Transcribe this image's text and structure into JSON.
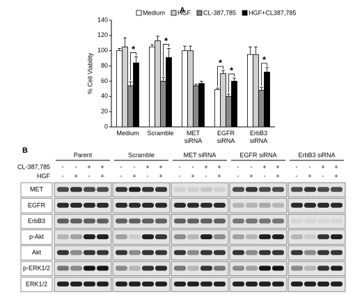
{
  "panel_a_label": "A",
  "chart_data": {
    "type": "bar",
    "ylabel": "% Cell Viability",
    "categories": [
      "Medium",
      "Scramble",
      "MET siRNA",
      "EGFR siRNA",
      "ErbB3 siRNA"
    ],
    "series": [
      {
        "name": "Medium",
        "color": "#ffffff",
        "values": [
          100,
          105,
          100,
          49,
          95
        ],
        "errors": [
          3,
          3,
          6,
          2,
          10
        ]
      },
      {
        "name": "HGF",
        "color": "#d0d0d0",
        "values": [
          105,
          113,
          100,
          70,
          95
        ],
        "errors": [
          12,
          6,
          6,
          4,
          10
        ]
      },
      {
        "name": "CL-387,785",
        "color": "#8a8a8a",
        "values": [
          54,
          60,
          54,
          40,
          48
        ],
        "errors": [
          5,
          5,
          2,
          3,
          4
        ]
      },
      {
        "name": "HGF+CL387,785",
        "color": "#000000",
        "values": [
          84,
          91,
          57,
          60,
          72
        ],
        "errors": [
          8,
          12,
          3,
          4,
          6
        ]
      }
    ],
    "ylim": [
      0,
      140
    ],
    "yticks": [
      0,
      20,
      40,
      60,
      80,
      100,
      120,
      140
    ],
    "annotations": [
      "*",
      "*",
      "*",
      "*",
      "*"
    ]
  },
  "blot": {
    "label": "B",
    "groups": [
      "Parent",
      "Scramble",
      "MET siRNA",
      "EGFR siRNA",
      "ErbB3 siRNA"
    ],
    "treatments": [
      {
        "name": "CL-387,785",
        "signs": [
          "-",
          "-",
          "+",
          "+"
        ]
      },
      {
        "name": "HGF",
        "signs": [
          "-",
          "+",
          "-",
          "+"
        ]
      }
    ],
    "rows": [
      "MET",
      "EGFR",
      "ErbB3",
      "p-Akt",
      "Akt",
      "p-ERK1/2",
      "ERK1/2"
    ]
  }
}
